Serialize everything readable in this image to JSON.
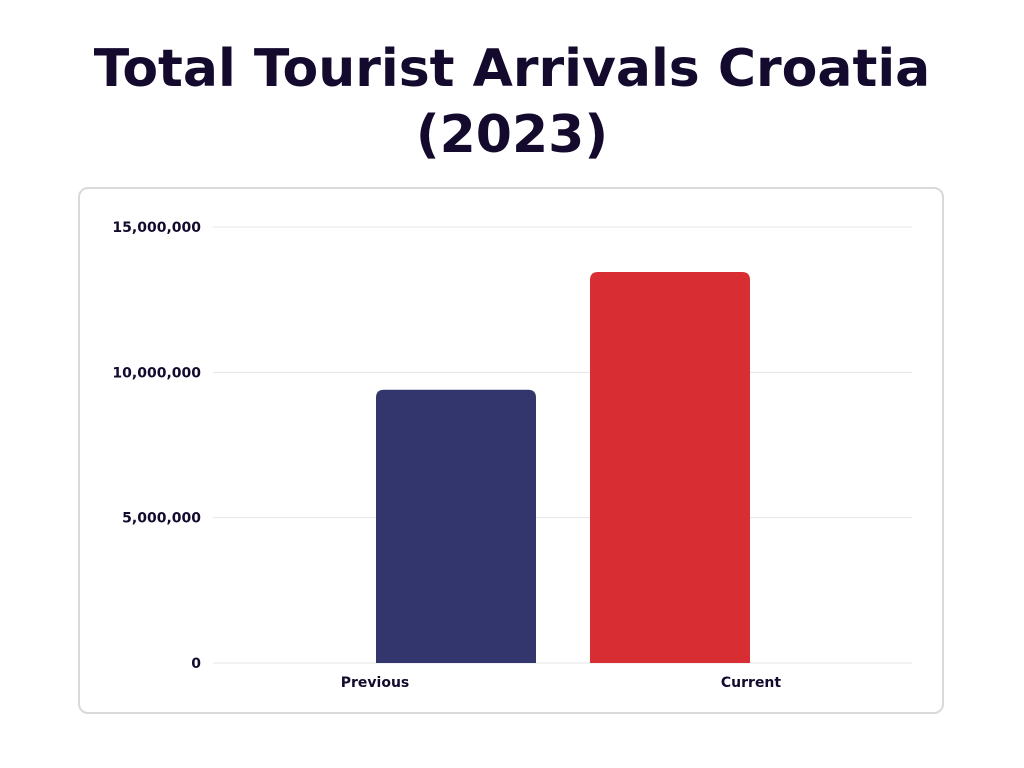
{
  "chart_data": {
    "type": "bar",
    "title": "Total Tourist Arrivals Croatia (2023)",
    "title_lines": [
      "Total Tourist Arrivals Croatia",
      "(2023)"
    ],
    "categories": [
      "Previous",
      "Current"
    ],
    "values": [
      9400000,
      13450000
    ],
    "bar_colors": [
      "#32366d",
      "#d82d33"
    ],
    "ylim": [
      0,
      15000000
    ],
    "yticks": [
      0,
      5000000,
      10000000,
      15000000
    ],
    "ytick_labels": [
      "0",
      "5,000,000",
      "10,000,000",
      "15,000,000"
    ],
    "xlabel": "",
    "ylabel": "",
    "grid": true
  },
  "colors": {
    "title": "#140a2e",
    "text": "#140a2e",
    "grid": "#e6e6e6",
    "border": "#d9d9d9"
  }
}
